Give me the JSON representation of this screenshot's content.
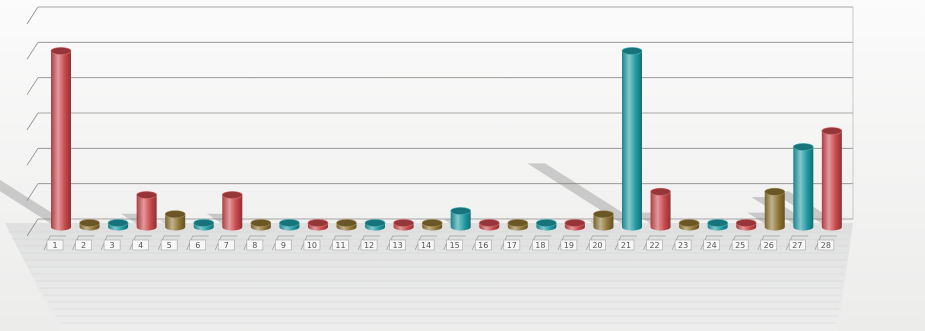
{
  "chart_data": {
    "type": "bar",
    "style": "3d-cylinder",
    "categories": [
      "1",
      "2",
      "3",
      "4",
      "5",
      "6",
      "7",
      "8",
      "9",
      "10",
      "11",
      "12",
      "13",
      "14",
      "15",
      "16",
      "17",
      "18",
      "19",
      "20",
      "21",
      "22",
      "23",
      "24",
      "25",
      "26",
      "27",
      "28"
    ],
    "values": [
      55,
      1,
      1,
      10,
      4,
      1,
      10,
      1,
      1,
      1,
      1,
      1,
      1,
      1,
      5,
      1,
      1,
      1,
      1,
      4,
      55,
      11,
      1,
      1,
      1,
      11,
      25,
      30
    ],
    "ylim": [
      0,
      60
    ],
    "gridlines": 6,
    "grid": true,
    "legend": "none",
    "colors": {
      "red": "#c9484c",
      "gold": "#8f7433",
      "teal": "#1f9aa3",
      "grid": "#8a8a8a",
      "floor": "#e4e5e4"
    },
    "bar_colors": [
      "red",
      "gold",
      "teal",
      "red",
      "gold",
      "teal",
      "red",
      "gold",
      "teal",
      "red",
      "gold",
      "teal",
      "red",
      "gold",
      "teal",
      "red",
      "gold",
      "teal",
      "red",
      "gold",
      "teal",
      "red",
      "gold",
      "teal",
      "red",
      "gold",
      "teal",
      "red"
    ]
  }
}
